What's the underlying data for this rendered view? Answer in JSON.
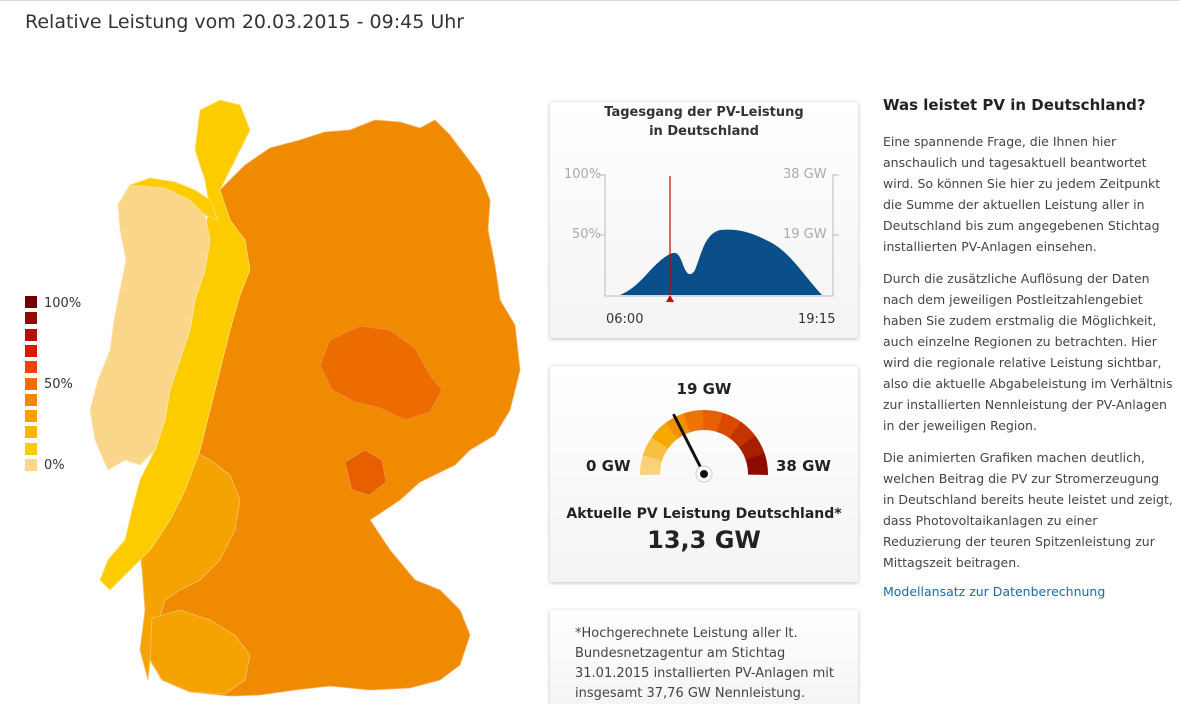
{
  "page": {
    "title": "Relative Leistung vom 20.03.2015 - 09:45 Uhr"
  },
  "legend": {
    "top_label": "100%",
    "mid_label": "50%",
    "bottom_label": "0%",
    "colors": [
      "#6e0000",
      "#8f0b00",
      "#b01400",
      "#d41d00",
      "#e8440d",
      "#ee6d00",
      "#f08800",
      "#f5a000",
      "#f8b400",
      "#fccc00",
      "#fad78a"
    ]
  },
  "map": {
    "colors": {
      "light": "#f9d68a",
      "yellow": "#fccc00",
      "lightorange": "#f6a800",
      "orange": "#f08a00",
      "dark": "#ec6c00",
      "darker": "#e85f00"
    }
  },
  "daychart": {
    "title_line1": "Tagesgang der PV-Leistung",
    "title_line2": "in Deutschland",
    "y_left_top": "100%",
    "y_left_mid": "50%",
    "y_right_top": "38 GW",
    "y_right_mid": "19 GW",
    "x_start": "06:00",
    "x_end": "19:15",
    "fill_color": "#0b4f8a",
    "marker_color": "#cc0000"
  },
  "gauge": {
    "top_label": "19 GW",
    "min_label": "0 GW",
    "max_label": "38 GW",
    "caption": "Aktuelle PV Leistung Deutschland*",
    "value_text": "13,3 GW",
    "min_gw": 0,
    "max_gw": 38,
    "value_gw": 13.3
  },
  "note": {
    "text": "*Hochgerechnete Leistung aller lt. Bundesnetzagentur am Stichtag 31.01.2015 installierten PV-Anlagen mit insgesamt 37,76 GW Nennleistung."
  },
  "sidebar": {
    "title": "Was leistet PV in Deutschland?",
    "p1": "Eine spannende Frage, die Ihnen hier anschaulich und tagesaktuell beantwortet wird. So können Sie hier zu jedem Zeitpunkt die Summe der aktuellen Leistung aller in Deutschland bis zum angegebenen Stichtag installierten PV-Anlagen einsehen.",
    "p2": "Durch die zusätzliche Auflösung der Daten nach dem jeweiligen Postleitzahlengebiet haben Sie zudem erstmalig die Möglichkeit, auch einzelne Regionen zu betrachten. Hier wird die regionale relative Leistung sichtbar, also die aktuelle Abgabeleistung im Verhältnis zur installierten Nennleistung der PV-Anlagen in der jeweiligen Region.",
    "p3": "Die animierten Grafiken machen deutlich, welchen Beitrag die PV zur Stromerzeugung in Deutschland bereits heute leistet und zeigt, dass Photovoltaikanlagen zu einer Reduzierung der teuren Spitzenleistung zur Mittagszeit beitragen.",
    "link": "Modellansatz zur Datenberechnung"
  }
}
